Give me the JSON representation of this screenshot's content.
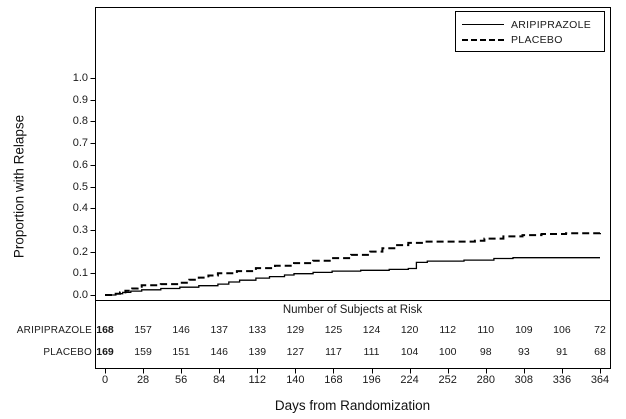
{
  "chart_data": {
    "type": "line",
    "subtype": "kaplan-meier-step",
    "title": "",
    "xlabel": "Days from Randomization",
    "ylabel": "Proportion with Relapse",
    "xlim": [
      0,
      364
    ],
    "ylim": [
      0,
      1
    ],
    "grid": false,
    "legend_position": "top-right",
    "x_ticks": [
      0,
      28,
      56,
      84,
      112,
      140,
      168,
      196,
      224,
      252,
      280,
      308,
      336,
      364
    ],
    "y_tick_labels": [
      "1.0",
      "0.9",
      "0.8",
      "0.7",
      "0.6",
      "0.5",
      "0.4",
      "0.3",
      "0.2",
      "0.1",
      "0.0"
    ],
    "series": [
      {
        "name": "ARIPIPRAZOLE",
        "line_style": "solid",
        "color": "#000000",
        "points": [
          [
            0,
            0
          ],
          [
            8,
            0.006
          ],
          [
            13,
            0.012
          ],
          [
            19,
            0.018
          ],
          [
            27,
            0.024
          ],
          [
            41,
            0.03
          ],
          [
            55,
            0.036
          ],
          [
            69,
            0.043
          ],
          [
            83,
            0.05
          ],
          [
            91,
            0.06
          ],
          [
            99,
            0.068
          ],
          [
            111,
            0.078
          ],
          [
            121,
            0.085
          ],
          [
            132,
            0.092
          ],
          [
            139,
            0.098
          ],
          [
            153,
            0.104
          ],
          [
            167,
            0.11
          ],
          [
            188,
            0.114
          ],
          [
            209,
            0.118
          ],
          [
            223,
            0.122
          ],
          [
            229,
            0.15
          ],
          [
            237,
            0.156
          ],
          [
            264,
            0.161
          ],
          [
            286,
            0.168
          ],
          [
            300,
            0.172
          ],
          [
            364,
            0.172
          ]
        ]
      },
      {
        "name": "PLACEBO",
        "line_style": "dashed",
        "color": "#000000",
        "points": [
          [
            0,
            0
          ],
          [
            6,
            0.006
          ],
          [
            11,
            0.012
          ],
          [
            15,
            0.02
          ],
          [
            20,
            0.03
          ],
          [
            24,
            0.038
          ],
          [
            27,
            0.045
          ],
          [
            41,
            0.05
          ],
          [
            55,
            0.056
          ],
          [
            62,
            0.07
          ],
          [
            69,
            0.08
          ],
          [
            76,
            0.09
          ],
          [
            83,
            0.1
          ],
          [
            97,
            0.11
          ],
          [
            111,
            0.124
          ],
          [
            125,
            0.135
          ],
          [
            139,
            0.147
          ],
          [
            153,
            0.158
          ],
          [
            167,
            0.17
          ],
          [
            181,
            0.185
          ],
          [
            195,
            0.2
          ],
          [
            204,
            0.215
          ],
          [
            214,
            0.23
          ],
          [
            223,
            0.24
          ],
          [
            234,
            0.246
          ],
          [
            272,
            0.25
          ],
          [
            279,
            0.26
          ],
          [
            293,
            0.27
          ],
          [
            307,
            0.276
          ],
          [
            321,
            0.281
          ],
          [
            339,
            0.285
          ],
          [
            364,
            0.29
          ]
        ]
      }
    ]
  },
  "risk_table": {
    "title": "Number of Subjects at Risk",
    "rows": [
      {
        "label": "ARIPIPRAZOLE",
        "values": [
          168,
          157,
          146,
          137,
          133,
          129,
          125,
          124,
          120,
          112,
          110,
          109,
          106,
          72
        ]
      },
      {
        "label": "PLACEBO",
        "values": [
          169,
          159,
          151,
          146,
          139,
          127,
          117,
          111,
          104,
          100,
          98,
          93,
          91,
          68
        ]
      }
    ]
  },
  "colors": {
    "line": "#000000",
    "background": "#ffffff"
  }
}
